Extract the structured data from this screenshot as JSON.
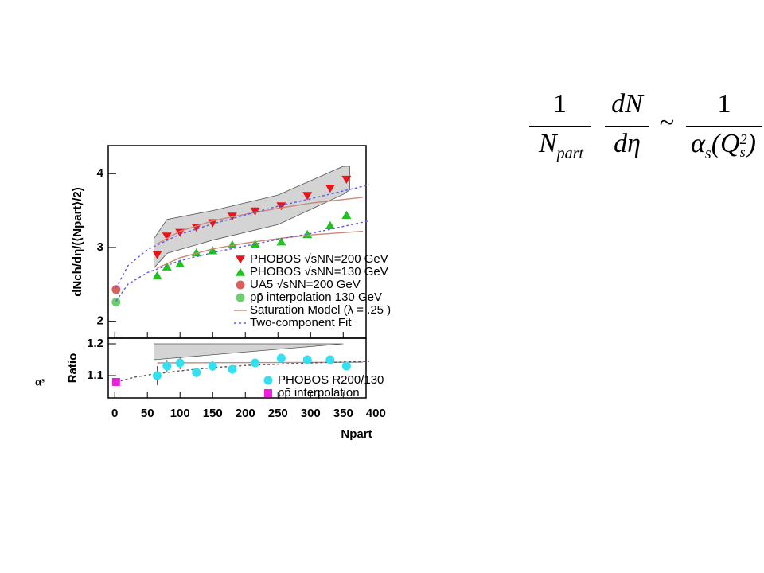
{
  "formula": {
    "left": {
      "numerator": "1",
      "denominator": "N",
      "denominator_sub": "part"
    },
    "middle": {
      "numerator": "dN",
      "denominator": "dη"
    },
    "relation": "~",
    "right": {
      "numerator": "1",
      "denominator": "α",
      "denominator_sub": "s",
      "paren_open": "(Q",
      "q_sup": "2",
      "q_sub": "s",
      "paren_close": ")"
    }
  },
  "side_label": "αˢ",
  "chart_data": [
    {
      "type": "scatter",
      "ylabel": "dNch/dη/(⟨Npart⟩/2)",
      "xlim": [
        -10,
        385
      ],
      "ylim": [
        1.77,
        4.38
      ],
      "xticks": [
        0,
        50,
        100,
        150,
        200,
        250,
        300,
        350
      ],
      "yticks": [
        2,
        3,
        4
      ],
      "band": {
        "color": "#d4d4d4",
        "x": [
          60,
          80,
          150,
          250,
          350,
          360
        ],
        "upper": [
          3.12,
          3.38,
          3.5,
          3.71,
          4.1,
          4.1
        ],
        "lower": [
          2.72,
          2.92,
          3.1,
          3.31,
          3.72,
          3.78
        ]
      },
      "series": [
        {
          "name": "PHOBOS √sNN=200 GeV",
          "color": "#e8141b",
          "marker": "down",
          "x": [
            65,
            80,
            100,
            125,
            150,
            180,
            215,
            255,
            295,
            330,
            355
          ],
          "values": [
            2.9,
            3.15,
            3.2,
            3.27,
            3.33,
            3.42,
            3.49,
            3.56,
            3.7,
            3.8,
            3.92
          ]
        },
        {
          "name": "PHOBOS √sNN=130 GeV",
          "color": "#1fc21f",
          "marker": "up",
          "x": [
            65,
            80,
            100,
            125,
            150,
            180,
            215,
            255,
            295,
            330,
            355
          ],
          "values": [
            2.62,
            2.74,
            2.78,
            2.93,
            2.96,
            3.04,
            3.05,
            3.08,
            3.18,
            3.3,
            3.44
          ]
        },
        {
          "name": "UA5 √sNN=200 GeV",
          "color": "#d9625e",
          "marker": "circle",
          "x": [
            2
          ],
          "values": [
            2.43
          ]
        },
        {
          "name": "pp̄ interpolation 130 GeV",
          "color": "#6ccf6c",
          "marker": "circle",
          "x": [
            2
          ],
          "values": [
            2.26
          ]
        },
        {
          "name": "Saturation Model (λ = .25 )",
          "color": "#c9897b",
          "line": "solid",
          "x": [
            65,
            100,
            150,
            200,
            250,
            300,
            380
          ],
          "values": [
            3.05,
            3.22,
            3.36,
            3.45,
            3.53,
            3.6,
            3.68
          ]
        },
        {
          "color": "#c9897b",
          "line": "solid",
          "x": [
            65,
            100,
            150,
            200,
            250,
            300,
            380
          ],
          "values": [
            2.72,
            2.86,
            2.98,
            3.06,
            3.12,
            3.17,
            3.22
          ]
        },
        {
          "name": "Two-component Fit",
          "color": "#5a5ae6",
          "line": "dashed",
          "x": [
            2,
            20,
            50,
            100,
            150,
            200,
            250,
            300,
            390
          ],
          "values": [
            2.45,
            2.75,
            2.97,
            3.18,
            3.32,
            3.44,
            3.56,
            3.66,
            3.85
          ]
        },
        {
          "color": "#5a5ae6",
          "line": "dashed",
          "x": [
            2,
            20,
            50,
            100,
            150,
            200,
            250,
            300,
            390
          ],
          "values": [
            2.27,
            2.5,
            2.66,
            2.82,
            2.93,
            3.02,
            3.11,
            3.19,
            3.36
          ]
        }
      ]
    },
    {
      "type": "scatter",
      "ylabel": "Ratio",
      "xlabel": "Npart",
      "xlim": [
        -10,
        385
      ],
      "ylim": [
        1.03,
        1.2175
      ],
      "xticks": [
        0,
        50,
        100,
        150,
        200,
        250,
        300,
        350,
        400
      ],
      "yticks": [
        1.1,
        1.2
      ],
      "band": {
        "color": "#d4d4d4",
        "x": [
          60,
          350
        ],
        "upper": [
          1.2,
          1.2
        ],
        "lower": [
          1.15,
          1.2
        ]
      },
      "series": [
        {
          "color": "#c9897b",
          "line": "solid",
          "x": [
            65,
            380
          ],
          "values": [
            1.14,
            1.142
          ]
        },
        {
          "color": "#555555",
          "line": "dashed",
          "x": [
            2,
            30,
            60,
            100,
            150,
            200,
            300,
            390
          ],
          "values": [
            1.08,
            1.095,
            1.105,
            1.115,
            1.125,
            1.132,
            1.14,
            1.145
          ]
        },
        {
          "name": "PHOBOS R200/130",
          "color": "#33e0f0",
          "marker": "circle",
          "x": [
            65,
            80,
            100,
            125,
            150,
            180,
            215,
            255,
            295,
            330,
            355
          ],
          "values": [
            1.1,
            1.13,
            1.14,
            1.11,
            1.13,
            1.12,
            1.14,
            1.155,
            1.15,
            1.15,
            1.13
          ],
          "errors": [
            0.03,
            0.02,
            0.02,
            0.015,
            0.015,
            0.012,
            0.012,
            0.01,
            0.012,
            0.01,
            0.008
          ]
        },
        {
          "name": "pp̄ interpolation",
          "color": "#f01ee0",
          "marker": "square",
          "x": [
            2
          ],
          "values": [
            1.08
          ]
        }
      ]
    }
  ]
}
